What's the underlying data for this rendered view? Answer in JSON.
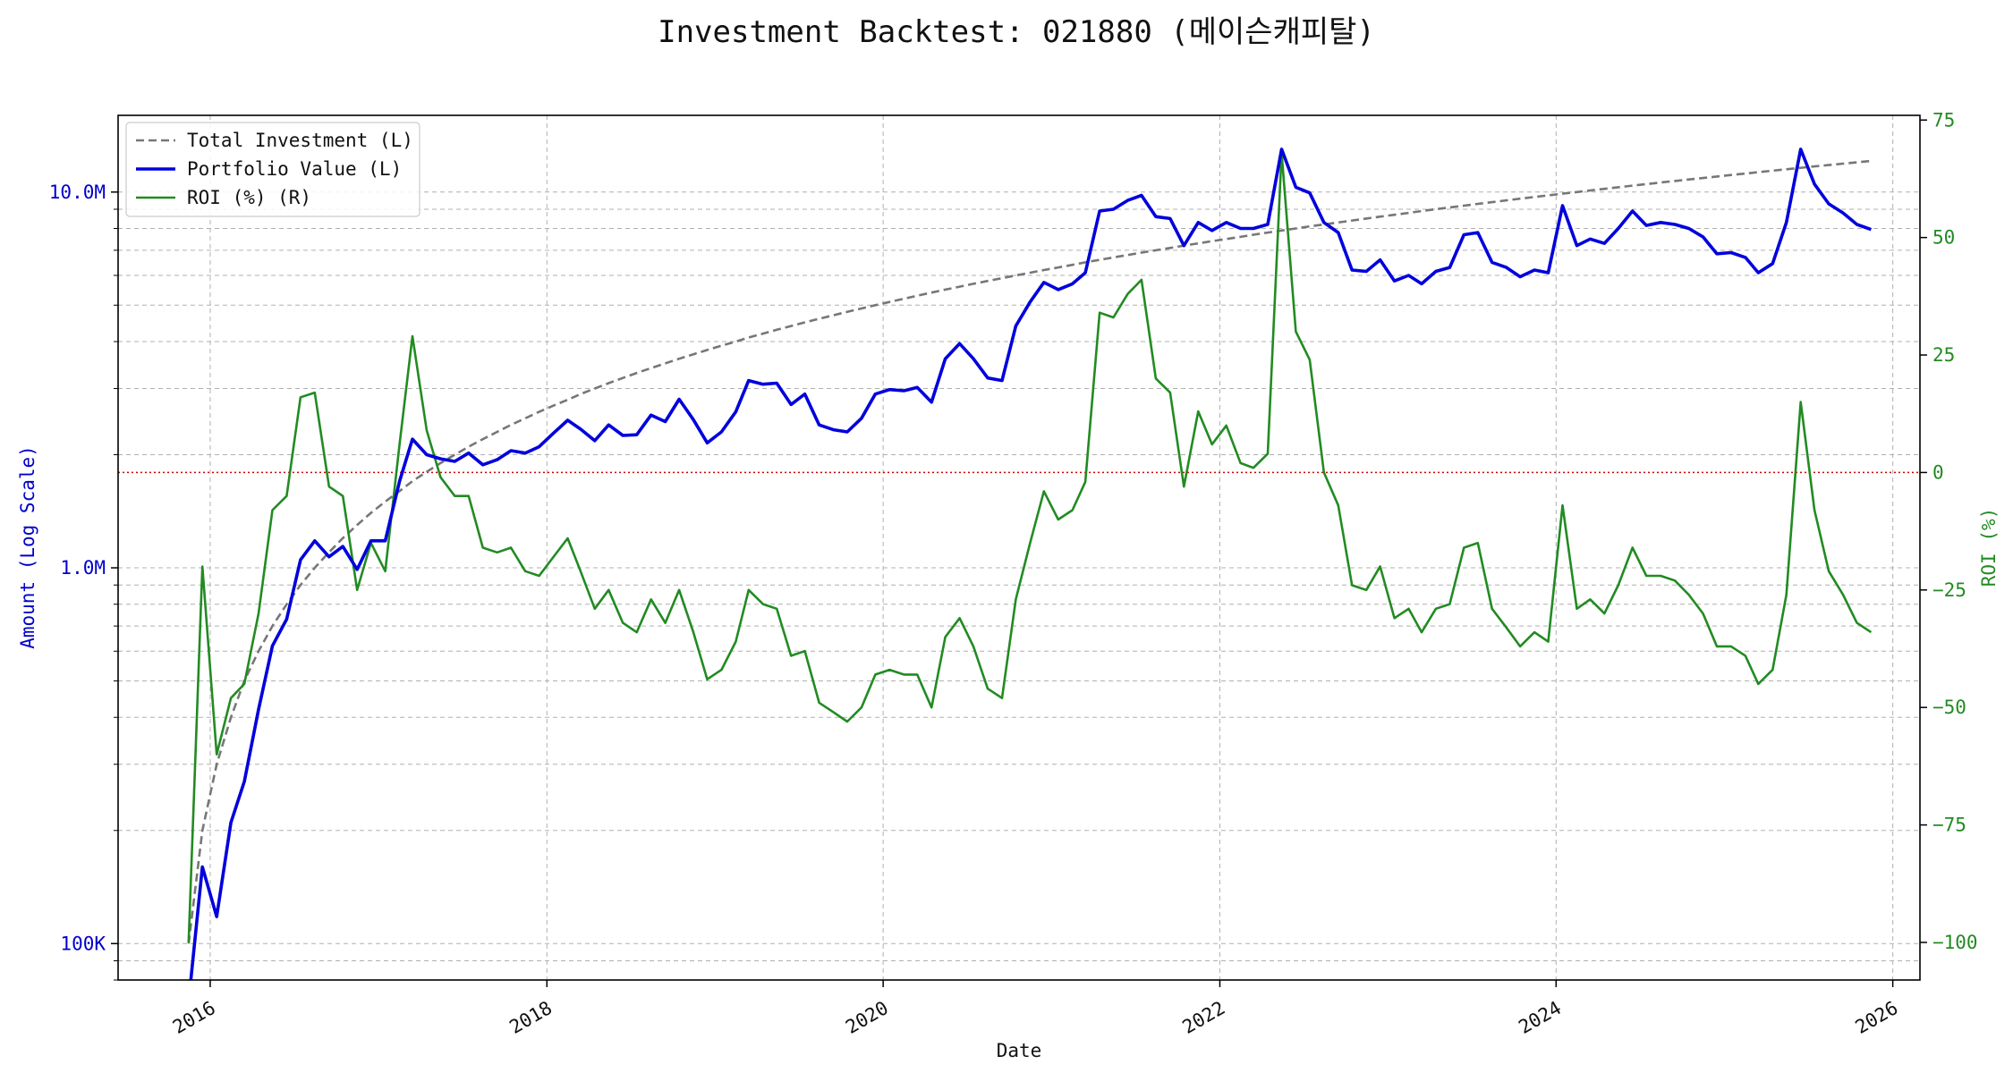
{
  "chart_data": {
    "type": "line",
    "title": "Investment Backtest: 021880 (메이슨캐피탈)",
    "xlabel": "Date",
    "ylabel_left": "Amount (Log Scale)",
    "ylabel_right": "ROI (%)",
    "y_left_scale": "log",
    "y_left_range": [
      80000,
      16000000
    ],
    "y_right_range": [
      -108,
      76
    ],
    "x_range": [
      "2015-06-15",
      "2026-03-01"
    ],
    "grid": true,
    "legend_position": "top-left",
    "x_ticks": [
      {
        "date": "2016-01-01",
        "label": "2016"
      },
      {
        "date": "2018-01-01",
        "label": "2018"
      },
      {
        "date": "2020-01-01",
        "label": "2020"
      },
      {
        "date": "2022-01-01",
        "label": "2022"
      },
      {
        "date": "2024-01-01",
        "label": "2024"
      },
      {
        "date": "2026-01-01",
        "label": "2026"
      }
    ],
    "y_left_ticks": [
      {
        "value": 100000,
        "label": "100K"
      },
      {
        "value": 1000000,
        "label": "1.0M"
      },
      {
        "value": 10000000,
        "label": "10.0M"
      }
    ],
    "y_right_ticks": [
      {
        "value": 75,
        "label": "75"
      },
      {
        "value": 50,
        "label": "50"
      },
      {
        "value": 25,
        "label": "25"
      },
      {
        "value": 0,
        "label": "0"
      },
      {
        "value": -25,
        "label": "−25"
      },
      {
        "value": -50,
        "label": "−50"
      },
      {
        "value": -75,
        "label": "−75"
      },
      {
        "value": -100,
        "label": "−100"
      }
    ],
    "reference_line": {
      "axis": "right",
      "value": 0,
      "color": "#cc0000"
    },
    "x": [
      "2015-11",
      "2015-12",
      "2016-01",
      "2016-02",
      "2016-03",
      "2016-04",
      "2016-05",
      "2016-06",
      "2016-07",
      "2016-08",
      "2016-09",
      "2016-10",
      "2016-11",
      "2016-12",
      "2017-01",
      "2017-02",
      "2017-03",
      "2017-04",
      "2017-05",
      "2017-06",
      "2017-07",
      "2017-08",
      "2017-09",
      "2017-10",
      "2017-11",
      "2017-12",
      "2018-01",
      "2018-02",
      "2018-03",
      "2018-04",
      "2018-05",
      "2018-06",
      "2018-07",
      "2018-08",
      "2018-09",
      "2018-10",
      "2018-11",
      "2018-12",
      "2019-01",
      "2019-02",
      "2019-03",
      "2019-04",
      "2019-05",
      "2019-06",
      "2019-07",
      "2019-08",
      "2019-09",
      "2019-10",
      "2019-11",
      "2019-12",
      "2020-01",
      "2020-02",
      "2020-03",
      "2020-04",
      "2020-05",
      "2020-06",
      "2020-07",
      "2020-08",
      "2020-09",
      "2020-10",
      "2020-11",
      "2020-12",
      "2021-01",
      "2021-02",
      "2021-03",
      "2021-04",
      "2021-05",
      "2021-06",
      "2021-07",
      "2021-08",
      "2021-09",
      "2021-10",
      "2021-11",
      "2021-12",
      "2022-01",
      "2022-02",
      "2022-03",
      "2022-04",
      "2022-05",
      "2022-06",
      "2022-07",
      "2022-08",
      "2022-09",
      "2022-10",
      "2022-11",
      "2022-12",
      "2023-01",
      "2023-02",
      "2023-03",
      "2023-04",
      "2023-05",
      "2023-06",
      "2023-07",
      "2023-08",
      "2023-09",
      "2023-10",
      "2023-11",
      "2023-12",
      "2024-01",
      "2024-02",
      "2024-03",
      "2024-04",
      "2024-05",
      "2024-06",
      "2024-07",
      "2024-08",
      "2024-09",
      "2024-10",
      "2024-11",
      "2024-12",
      "2025-01",
      "2025-02",
      "2025-03",
      "2025-04",
      "2025-05",
      "2025-06",
      "2025-07",
      "2025-08",
      "2025-09",
      "2025-10",
      "2025-11"
    ],
    "series": [
      {
        "name": "Total Investment (L)",
        "axis": "left",
        "color": "#777777",
        "style": "dashed",
        "values": [
          100000,
          200000,
          300000,
          400000,
          500000,
          600000,
          700000,
          800000,
          900000,
          1000000,
          1100000,
          1200000,
          1300000,
          1400000,
          1500000,
          1600000,
          1700000,
          1800000,
          1900000,
          2000000,
          2100000,
          2200000,
          2300000,
          2400000,
          2500000,
          2600000,
          2700000,
          2800000,
          2900000,
          3000000,
          3100000,
          3200000,
          3300000,
          3400000,
          3500000,
          3600000,
          3700000,
          3800000,
          3900000,
          4000000,
          4100000,
          4200000,
          4300000,
          4400000,
          4500000,
          4600000,
          4700000,
          4800000,
          4900000,
          5000000,
          5100000,
          5200000,
          5300000,
          5400000,
          5500000,
          5600000,
          5700000,
          5800000,
          5900000,
          6000000,
          6100000,
          6200000,
          6300000,
          6400000,
          6500000,
          6600000,
          6700000,
          6800000,
          6900000,
          7000000,
          7100000,
          7200000,
          7300000,
          7400000,
          7500000,
          7600000,
          7700000,
          7800000,
          7900000,
          8000000,
          8100000,
          8200000,
          8300000,
          8400000,
          8500000,
          8600000,
          8700000,
          8800000,
          8900000,
          9000000,
          9100000,
          9200000,
          9300000,
          9400000,
          9500000,
          9600000,
          9700000,
          9800000,
          9900000,
          10000000,
          10100000,
          10200000,
          10300000,
          10400000,
          10500000,
          10600000,
          10700000,
          10800000,
          10900000,
          11000000,
          11100000,
          11200000,
          11300000,
          11400000,
          11500000,
          11600000,
          11700000,
          11800000,
          11900000,
          12000000,
          12100000
        ]
      },
      {
        "name": "Portfolio Value (L)",
        "axis": "left",
        "color": "#0000dd",
        "style": "solid",
        "values": [
          70000,
          160000,
          118000,
          210000,
          270000,
          420000,
          620000,
          730000,
          1050000,
          1180000,
          1070000,
          1140000,
          990000,
          1180000,
          1180000,
          1700000,
          2200000,
          2000000,
          1950000,
          1920000,
          2020000,
          1880000,
          1940000,
          2050000,
          2020000,
          2100000,
          2280000,
          2470000,
          2340000,
          2180000,
          2400000,
          2250000,
          2260000,
          2550000,
          2450000,
          2810000,
          2480000,
          2150000,
          2300000,
          2600000,
          3150000,
          3080000,
          3100000,
          2720000,
          2900000,
          2400000,
          2330000,
          2300000,
          2500000,
          2900000,
          2980000,
          2960000,
          3020000,
          2760000,
          3600000,
          3950000,
          3600000,
          3200000,
          3150000,
          4400000,
          5100000,
          5750000,
          5500000,
          5700000,
          6100000,
          8900000,
          9000000,
          9500000,
          9800000,
          8600000,
          8500000,
          7200000,
          8300000,
          7900000,
          8300000,
          8000000,
          8000000,
          8200000,
          13000000,
          10300000,
          9950000,
          8300000,
          7800000,
          6200000,
          6150000,
          6600000,
          5800000,
          6000000,
          5700000,
          6150000,
          6300000,
          7700000,
          7800000,
          6500000,
          6300000,
          5950000,
          6200000,
          6100000,
          9200000,
          7200000,
          7500000,
          7300000,
          8000000,
          8900000,
          8150000,
          8300000,
          8200000,
          8000000,
          7600000,
          6850000,
          6900000,
          6700000,
          6100000,
          6450000,
          8300000,
          13000000,
          10500000,
          9300000,
          8800000,
          8200000,
          7950000
        ]
      },
      {
        "name": "ROI (%) (R)",
        "axis": "right",
        "color": "#228b22",
        "style": "solid",
        "values": [
          -100,
          -20,
          -60,
          -48,
          -45,
          -30,
          -8,
          -5,
          16,
          17,
          -3,
          -5,
          -25,
          -15,
          -21,
          6,
          29,
          9,
          -1,
          -5,
          -5,
          -16,
          -17,
          -16,
          -21,
          -22,
          -18,
          -14,
          -21,
          -29,
          -25,
          -32,
          -34,
          -27,
          -32,
          -25,
          -34,
          -44,
          -42,
          -36,
          -25,
          -28,
          -29,
          -39,
          -38,
          -49,
          -51,
          -53,
          -50,
          -43,
          -42,
          -43,
          -43,
          -50,
          -35,
          -31,
          -37,
          -46,
          -48,
          -27,
          -15,
          -4,
          -10,
          -8,
          -2,
          34,
          33,
          38,
          41,
          20,
          17,
          -3,
          13,
          6,
          10,
          2,
          1,
          4,
          68,
          30,
          24,
          0,
          -7,
          -24,
          -25,
          -20,
          -31,
          -29,
          -34,
          -29,
          -28,
          -16,
          -15,
          -29,
          -33,
          -37,
          -34,
          -36,
          -7,
          -29,
          -27,
          -30,
          -24,
          -16,
          -22,
          -22,
          -23,
          -26,
          -30,
          -37,
          -37,
          -39,
          -45,
          -42,
          -26,
          15,
          -8,
          -21,
          -26,
          -32,
          -34
        ]
      }
    ]
  }
}
